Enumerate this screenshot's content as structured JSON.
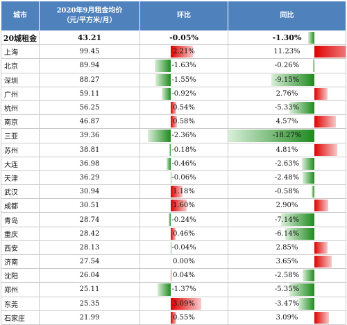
{
  "table": {
    "headers": {
      "city": "城市",
      "price_line1": "2020年9月租金均价",
      "price_line2": "（元/平方米/月）",
      "mom": "环比",
      "yoy": "同比"
    },
    "total": {
      "city": "20城租金",
      "price": "43.21",
      "mom": "-0.05%",
      "yoy": "-1.30%",
      "yoy_value": -1.3
    },
    "rows": [
      {
        "city": "上海",
        "price": "99.45",
        "mom": "2.21%",
        "mom_value": 2.21,
        "yoy": "11.23%",
        "yoy_value": 11.23
      },
      {
        "city": "北京",
        "price": "89.94",
        "mom": "-1.63%",
        "mom_value": -1.63,
        "yoy": "-0.26%",
        "yoy_value": -0.26
      },
      {
        "city": "深圳",
        "price": "88.27",
        "mom": "-1.55%",
        "mom_value": -1.55,
        "yoy": "-9.15%",
        "yoy_value": -9.15
      },
      {
        "city": "广州",
        "price": "59.11",
        "mom": "-0.92%",
        "mom_value": -0.92,
        "yoy": "2.76%",
        "yoy_value": 2.76
      },
      {
        "city": "杭州",
        "price": "56.25",
        "mom": "0.54%",
        "mom_value": 0.54,
        "yoy": "-5.33%",
        "yoy_value": -5.33
      },
      {
        "city": "南京",
        "price": "46.87",
        "mom": "0.58%",
        "mom_value": 0.58,
        "yoy": "4.57%",
        "yoy_value": 4.57
      },
      {
        "city": "三亚",
        "price": "39.36",
        "mom": "-2.36%",
        "mom_value": -2.36,
        "yoy": "-18.27%",
        "yoy_value": -18.27
      },
      {
        "city": "苏州",
        "price": "38.81",
        "mom": "-0.18%",
        "mom_value": -0.18,
        "yoy": "4.81%",
        "yoy_value": 4.81
      },
      {
        "city": "大连",
        "price": "36.98",
        "mom": "-0.46%",
        "mom_value": -0.46,
        "yoy": "-2.63%",
        "yoy_value": -2.63
      },
      {
        "city": "天津",
        "price": "36.29",
        "mom": "-0.06%",
        "mom_value": -0.06,
        "yoy": "-2.48%",
        "yoy_value": -2.48
      },
      {
        "city": "武汉",
        "price": "30.94",
        "mom": "1.18%",
        "mom_value": 1.18,
        "yoy": "-0.58%",
        "yoy_value": -0.58
      },
      {
        "city": "成都",
        "price": "30.51",
        "mom": "1.60%",
        "mom_value": 1.6,
        "yoy": "2.90%",
        "yoy_value": 2.9
      },
      {
        "city": "青岛",
        "price": "28.74",
        "mom": "-0.24%",
        "mom_value": -0.24,
        "yoy": "-7.14%",
        "yoy_value": -7.14
      },
      {
        "city": "重庆",
        "price": "28.42",
        "mom": "0.46%",
        "mom_value": 0.46,
        "yoy": "-6.14%",
        "yoy_value": -6.14
      },
      {
        "city": "西安",
        "price": "28.13",
        "mom": "-0.04%",
        "mom_value": -0.04,
        "yoy": "2.85%",
        "yoy_value": 2.85
      },
      {
        "city": "济南",
        "price": "27.54",
        "mom": "0.00%",
        "mom_value": 0.0,
        "yoy": "3.65%",
        "yoy_value": 3.65
      },
      {
        "city": "沈阳",
        "price": "26.04",
        "mom": "0.04%",
        "mom_value": 0.04,
        "yoy": "-2.58%",
        "yoy_value": -2.58
      },
      {
        "city": "郑州",
        "price": "25.11",
        "mom": "-1.37%",
        "mom_value": -1.37,
        "yoy": "-5.35%",
        "yoy_value": -5.35
      },
      {
        "city": "东莞",
        "price": "25.35",
        "mom": "3.09%",
        "mom_value": 3.09,
        "yoy": "-3.47%",
        "yoy_value": -3.47
      },
      {
        "city": "石家庄",
        "price": "21.99",
        "mom": "0.55%",
        "mom_value": 0.55,
        "yoy": "3.09%",
        "yoy_value": 3.09
      }
    ]
  },
  "colors": {
    "header_bg": "#4f81bd",
    "positive_bar": "#e00000",
    "negative_bar": "#1f8a1f",
    "border": "#c9c9c9"
  }
}
